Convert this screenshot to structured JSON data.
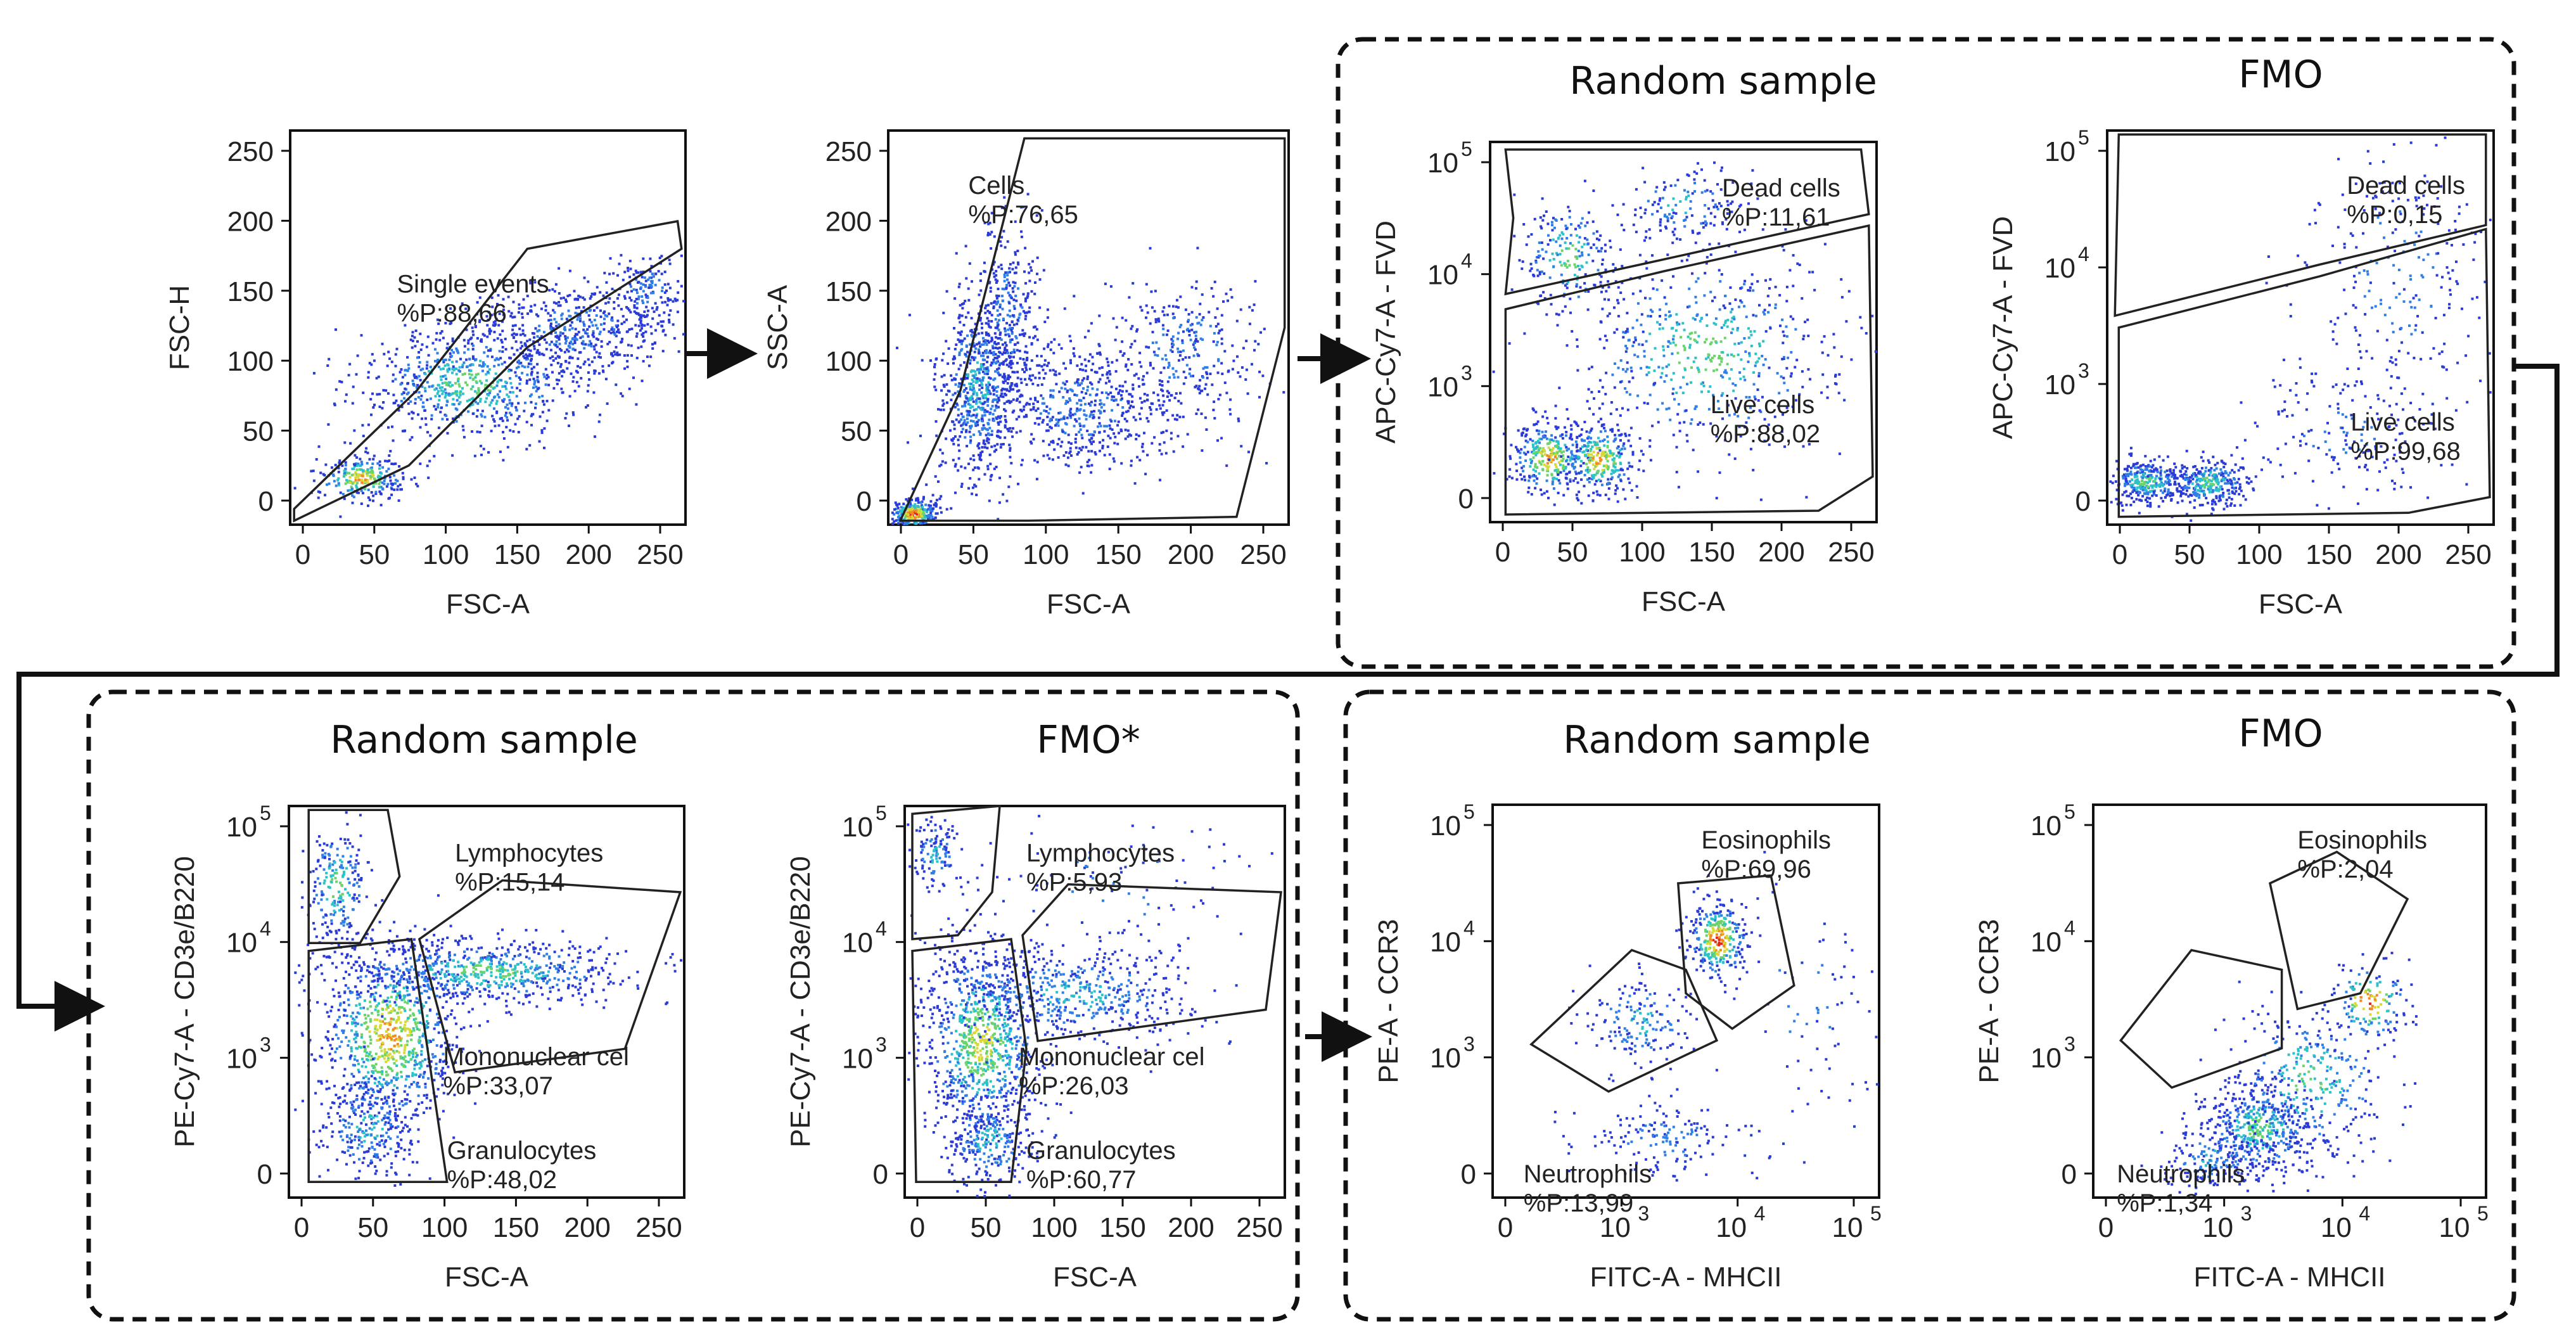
{
  "figure": {
    "colors": {
      "frame": "#111111",
      "gate": "#222222",
      "density": [
        "#2b3bd6",
        "#2f7fe6",
        "#2bc2c8",
        "#6ad46a",
        "#d8d83a",
        "#f08a24",
        "#e0281c"
      ]
    },
    "groups": [
      {
        "titles": [
          "Random sample",
          "FMO"
        ]
      },
      {
        "titles": [
          "Random sample",
          "FMO*"
        ]
      },
      {
        "titles": [
          "Random sample",
          "FMO"
        ]
      }
    ],
    "panels": [
      {
        "id": "singlets",
        "xlabel": "FSC-A",
        "ylabel": "FSC-H",
        "xticks": [
          "0",
          "50",
          "100",
          "150",
          "200",
          "250"
        ],
        "yticks": [
          "250",
          "200",
          "150",
          "100",
          "50",
          "0"
        ],
        "gates": [
          {
            "name": "Single events",
            "pct": "%P:88,66"
          }
        ]
      },
      {
        "id": "cells",
        "xlabel": "FSC-A",
        "ylabel": "SSC-A",
        "xticks": [
          "0",
          "50",
          "100",
          "150",
          "200",
          "250"
        ],
        "yticks": [
          "250",
          "200",
          "150",
          "100",
          "50",
          "0"
        ],
        "gates": [
          {
            "name": "Cells",
            "pct": "%P:76,65"
          }
        ]
      },
      {
        "id": "viability-sample",
        "xlabel": "FSC-A",
        "ylabel": "APC-Cy7-A - FVD",
        "xticks": [
          "0",
          "50",
          "100",
          "150",
          "200",
          "250"
        ],
        "yticks": [
          "10",
          "10",
          "10",
          "0"
        ],
        "yexp": [
          "5",
          "4",
          "3"
        ],
        "gates": [
          {
            "name": "Dead cells",
            "pct": "%P:11,61"
          },
          {
            "name": "Live cells",
            "pct": "%P:88,02"
          }
        ]
      },
      {
        "id": "viability-fmo",
        "xlabel": "FSC-A",
        "ylabel": "APC-Cy7-A - FVD",
        "xticks": [
          "0",
          "50",
          "100",
          "150",
          "200",
          "250"
        ],
        "yticks": [
          "10",
          "10",
          "10",
          "0"
        ],
        "yexp": [
          "5",
          "4",
          "3"
        ],
        "gates": [
          {
            "name": "Dead cells",
            "pct": "%P:0,15"
          },
          {
            "name": "Live cells",
            "pct": "%P:99,68"
          }
        ]
      },
      {
        "id": "lineage-sample",
        "xlabel": "FSC-A",
        "ylabel": "PE-Cy7-A - CD3e/B220",
        "xticks": [
          "0",
          "50",
          "100",
          "150",
          "200",
          "250"
        ],
        "yticks": [
          "10",
          "10",
          "10",
          "0"
        ],
        "yexp": [
          "5",
          "4",
          "3"
        ],
        "gates": [
          {
            "name": "Lymphocytes",
            "pct": "%P:15,14"
          },
          {
            "name": "Mononuclear cel",
            "pct": "%P:33,07"
          },
          {
            "name": "Granulocytes",
            "pct": "%P:48,02"
          }
        ]
      },
      {
        "id": "lineage-fmo",
        "xlabel": "FSC-A",
        "ylabel": "PE-Cy7-A - CD3e/B220",
        "xticks": [
          "0",
          "50",
          "100",
          "150",
          "200",
          "250"
        ],
        "yticks": [
          "10",
          "10",
          "10",
          "0"
        ],
        "yexp": [
          "5",
          "4",
          "3"
        ],
        "gates": [
          {
            "name": "Lymphocytes",
            "pct": "%P:5,93"
          },
          {
            "name": "Mononuclear cel",
            "pct": "%P:26,03"
          },
          {
            "name": "Granulocytes",
            "pct": "%P:60,77"
          }
        ]
      },
      {
        "id": "granulocytes-sample",
        "xlabel": "FITC-A - MHCII",
        "ylabel": "PE-A - CCR3",
        "xticks": [
          "0",
          "10",
          "10",
          "10"
        ],
        "xexp": [
          "3",
          "4",
          "5"
        ],
        "yticks": [
          "10",
          "10",
          "10",
          "0"
        ],
        "yexp": [
          "5",
          "4",
          "3"
        ],
        "gates": [
          {
            "name": "Eosinophils",
            "pct": "%P:69,96"
          },
          {
            "name": "Neutrophils",
            "pct": "%P:13,99"
          }
        ]
      },
      {
        "id": "granulocytes-fmo",
        "xlabel": "FITC-A - MHCII",
        "ylabel": "PE-A - CCR3",
        "xticks": [
          "0",
          "10",
          "10",
          "10"
        ],
        "xexp": [
          "3",
          "4",
          "5"
        ],
        "yticks": [
          "10",
          "10",
          "10",
          "0"
        ],
        "yexp": [
          "5",
          "4",
          "3"
        ],
        "gates": [
          {
            "name": "Eosinophils",
            "pct": "%P:2,04"
          },
          {
            "name": "Neutrophils",
            "pct": "%P:1,34"
          }
        ]
      }
    ]
  }
}
